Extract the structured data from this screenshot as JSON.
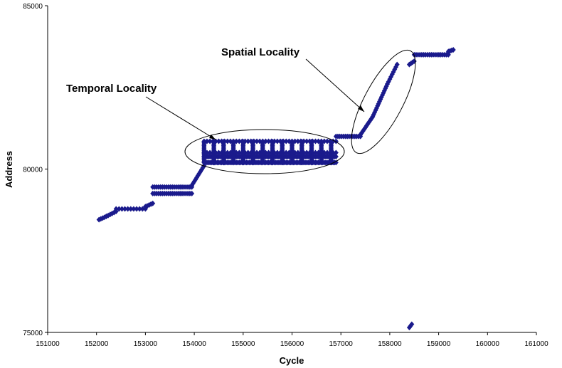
{
  "chart_data": {
    "type": "scatter",
    "title": "",
    "xlabel": "Cycle",
    "ylabel": "Address",
    "xlim": [
      151000,
      161000
    ],
    "ylim": [
      75000,
      85000
    ],
    "x_ticks": [
      "151000",
      "152000",
      "153000",
      "154000",
      "155000",
      "156000",
      "157000",
      "158000",
      "159000",
      "160000",
      "161000"
    ],
    "y_ticks": [
      "75000",
      "80000",
      "85000"
    ],
    "grid": false,
    "legend": "none",
    "marker_color": "#1a1a8c",
    "annotations": [
      {
        "text": "Temporal Locality",
        "target_cycle": 154300,
        "target_address": 80850
      },
      {
        "text": "Spatial Locality",
        "target_cycle": 157550,
        "target_address": 81800
      }
    ],
    "segments": [
      {
        "x0": 152050,
        "x1": 152200,
        "y0": 78450,
        "y1": 78550,
        "step": 40
      },
      {
        "x0": 152200,
        "x1": 152400,
        "y0": 78550,
        "y1": 78700,
        "step": 40
      },
      {
        "x0": 152400,
        "x1": 153000,
        "y0": 78780,
        "y1": 78780,
        "step": 60
      },
      {
        "x0": 153000,
        "x1": 153150,
        "y0": 78850,
        "y1": 78950,
        "step": 40
      },
      {
        "x0": 153150,
        "x1": 153950,
        "y0": 79250,
        "y1": 79250,
        "step": 40
      },
      {
        "x0": 153150,
        "x1": 153950,
        "y0": 79450,
        "y1": 79450,
        "step": 40
      },
      {
        "x0": 153950,
        "x1": 154200,
        "y0": 79500,
        "y1": 80100,
        "step": 25
      },
      {
        "x0": 154200,
        "x1": 156900,
        "y0": 80200,
        "y1": 80200,
        "step": 30
      },
      {
        "x0": 154200,
        "x1": 156900,
        "y0": 80380,
        "y1": 80380,
        "step": 30
      },
      {
        "x0": 154200,
        "x1": 156900,
        "y0": 80500,
        "y1": 80500,
        "step": 60
      },
      {
        "x0": 154200,
        "x1": 156900,
        "y0": 80850,
        "y1": 80850,
        "step": 60
      },
      {
        "x0": 156900,
        "x1": 157400,
        "y0": 81000,
        "y1": 81000,
        "step": 40
      },
      {
        "x0": 157400,
        "x1": 157650,
        "y0": 81050,
        "y1": 81600,
        "step": 25
      },
      {
        "x0": 157650,
        "x1": 157950,
        "y0": 81600,
        "y1": 82600,
        "step": 20
      },
      {
        "x0": 157950,
        "x1": 158150,
        "y0": 82600,
        "y1": 83200,
        "step": 25
      },
      {
        "x0": 158400,
        "x1": 158500,
        "y0": 83200,
        "y1": 83300,
        "step": 30
      },
      {
        "x0": 158500,
        "x1": 159200,
        "y0": 83500,
        "y1": 83500,
        "step": 40
      },
      {
        "x0": 159200,
        "x1": 159300,
        "y0": 83600,
        "y1": 83650,
        "step": 40
      },
      {
        "x0": 158400,
        "x1": 158450,
        "y0": 75150,
        "y1": 75250,
        "step": 25
      }
    ],
    "columns": [
      {
        "x0": 154200,
        "x1": 156900,
        "period": 200,
        "y0": 80200,
        "y1": 80850
      }
    ]
  }
}
